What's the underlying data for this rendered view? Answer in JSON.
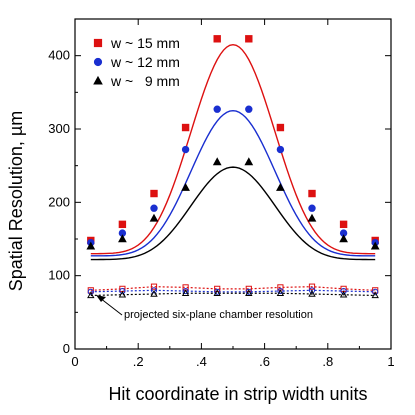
{
  "chart_data": {
    "type": "scatter",
    "xlabel": "Hit coordinate in strip width units",
    "ylabel": "Spatial Resolution, µm",
    "xlim": [
      0,
      1
    ],
    "ylim": [
      0,
      450
    ],
    "xticks": [
      0,
      0.2,
      0.4,
      0.6,
      0.8,
      1
    ],
    "yticks": [
      0,
      100,
      200,
      300,
      400
    ],
    "xtick_labels": [
      "0",
      ".2",
      ".4",
      ".6",
      ".8",
      "1"
    ],
    "ytick_labels": [
      "0",
      "100",
      "200",
      "300",
      "400"
    ],
    "legend_position": "top-left",
    "grid": false,
    "annotation": "projected six-plane chamber resolution",
    "x": [
      0.05,
      0.15,
      0.25,
      0.35,
      0.45,
      0.55,
      0.65,
      0.75,
      0.85,
      0.95
    ],
    "series": [
      {
        "name": "w ~ 15 mm",
        "color": "#dd1111",
        "marker": "square",
        "values": [
          148,
          170,
          212,
          302,
          423,
          423,
          302,
          212,
          170,
          148
        ],
        "fit_peak": 415,
        "fit_base": 130,
        "projected": [
          80,
          82,
          85,
          84,
          82,
          82,
          84,
          85,
          82,
          80
        ]
      },
      {
        "name": "w ~ 12 mm",
        "color": "#1a2fd0",
        "marker": "circle",
        "values": [
          145,
          158,
          192,
          272,
          327,
          327,
          272,
          192,
          158,
          145
        ],
        "fit_peak": 325,
        "fit_base": 127,
        "projected": [
          78,
          79,
          80,
          79,
          78,
          78,
          79,
          80,
          79,
          78
        ]
      },
      {
        "name": "w ~   9 mm",
        "color": "#000000",
        "marker": "triangle",
        "values": [
          140,
          150,
          178,
          220,
          255,
          255,
          220,
          178,
          150,
          140
        ],
        "fit_peak": 248,
        "fit_base": 122,
        "projected": [
          73,
          74,
          75,
          76,
          76,
          76,
          76,
          75,
          74,
          73
        ]
      }
    ]
  }
}
